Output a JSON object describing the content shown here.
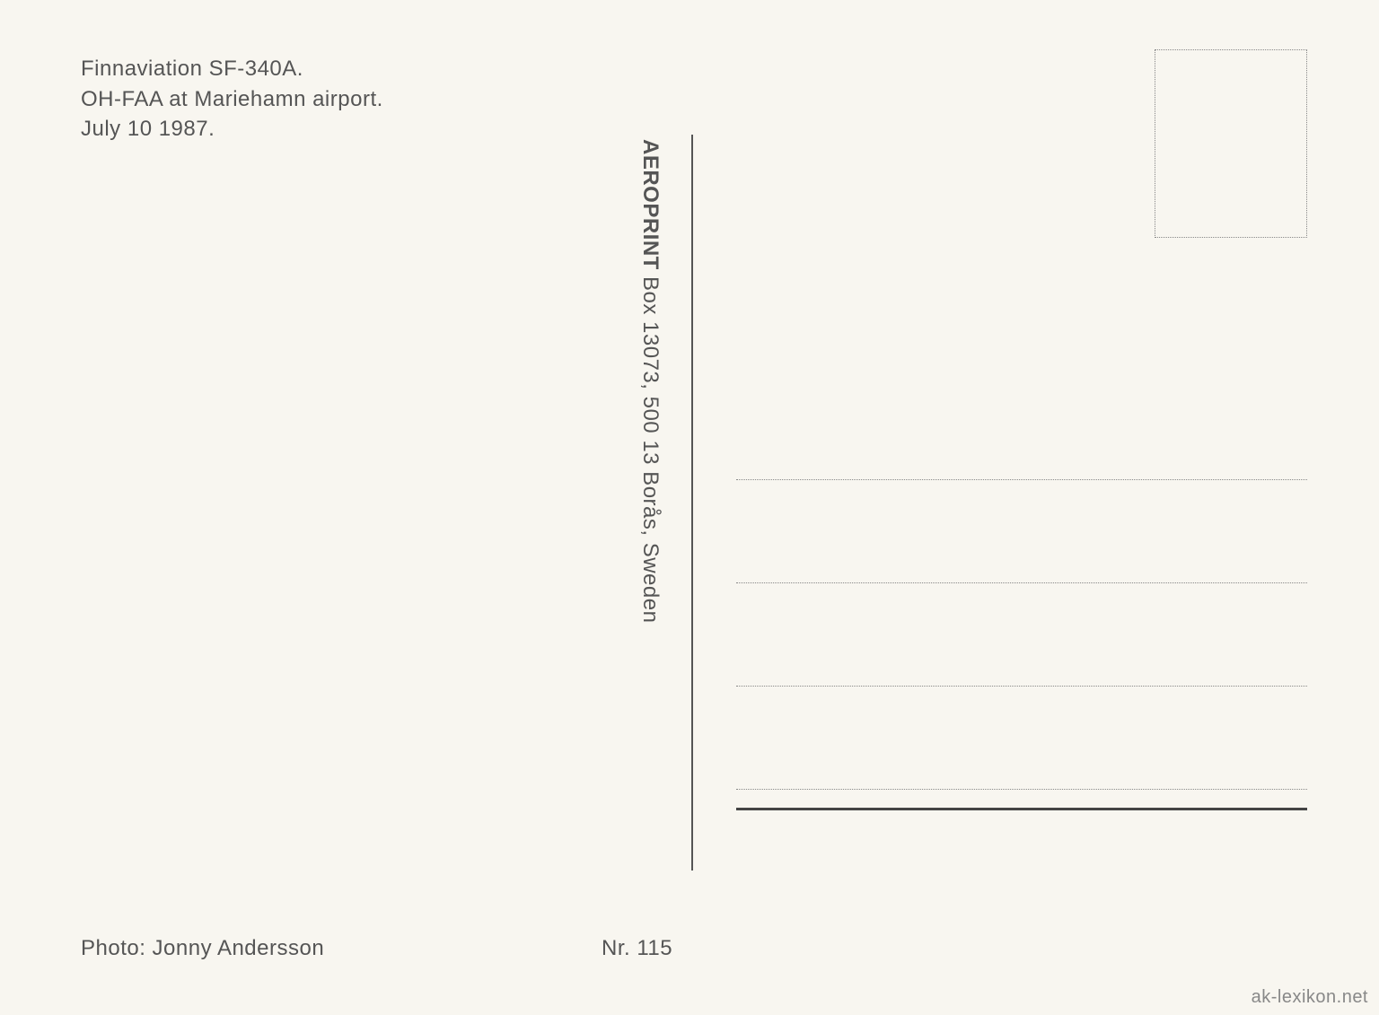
{
  "caption": {
    "line1": "Finnaviation SF-340A.",
    "line2": "OH-FAA at Mariehamn airport.",
    "line3": "July 10 1987."
  },
  "photo_credit": "Photo: Jonny Andersson",
  "number_label": "Nr. 115",
  "publisher": {
    "name": "AEROPRINT",
    "address": " Box 13073, 500 13 Borås, Sweden"
  },
  "watermark": "ak-lexikon.net",
  "layout": {
    "address_line_count": 4,
    "colors": {
      "background": "#f8f6f0",
      "text": "#555",
      "dotted": "#888",
      "solid_line": "#444"
    },
    "fontsize": 24
  }
}
